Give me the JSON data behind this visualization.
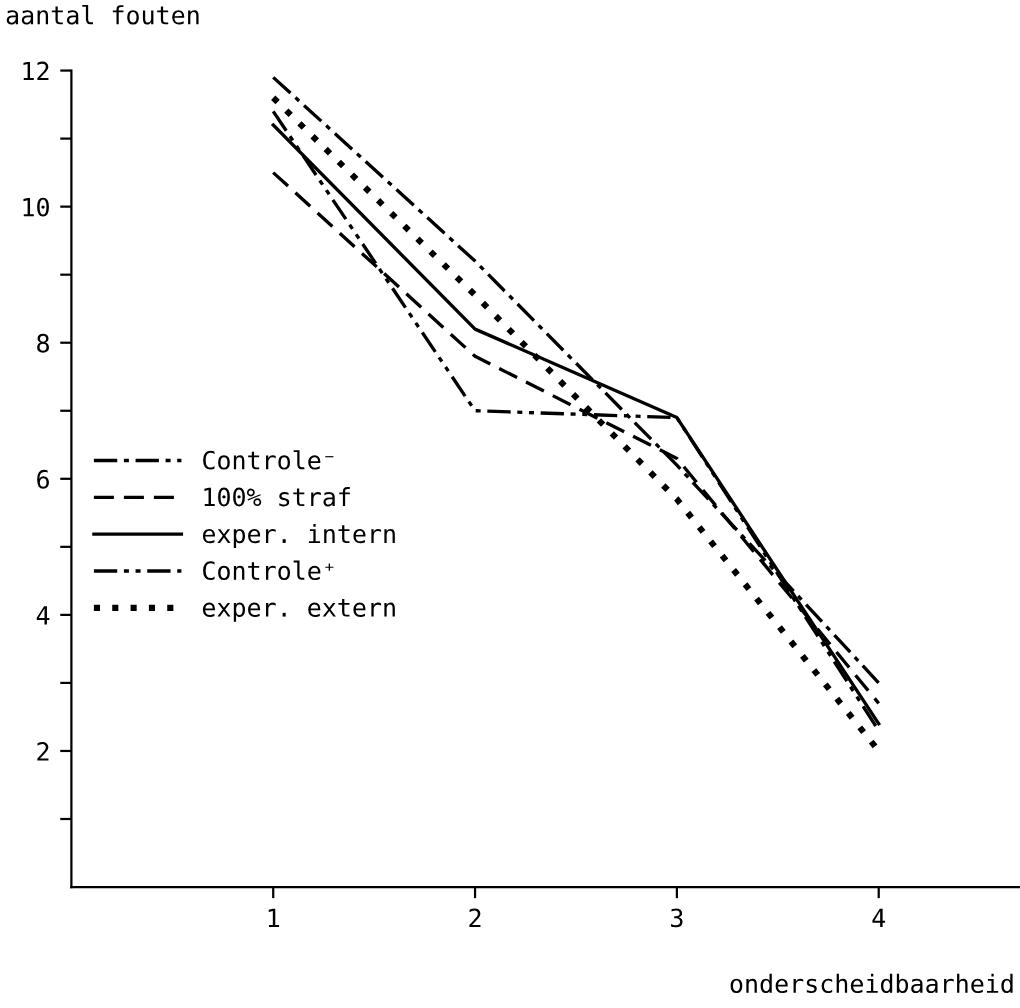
{
  "chart_data": {
    "type": "line",
    "xlabel": "onderscheidbaarheid",
    "ylabel": "aantal fouten",
    "x": [
      1,
      2,
      3,
      4
    ],
    "xlim": [
      0,
      4.7
    ],
    "xticks": [
      1,
      2,
      3,
      4
    ],
    "ylim": [
      0,
      12
    ],
    "yticks": [
      {
        "value": 1,
        "label": null
      },
      2,
      {
        "value": 3,
        "label": null
      },
      4,
      {
        "value": 5,
        "label": null
      },
      6,
      {
        "value": 7,
        "label": null
      },
      8,
      {
        "value": 9,
        "label": null
      },
      10,
      {
        "value": 11,
        "label": null
      },
      12
    ],
    "grid": false,
    "legend": "left",
    "marker": "none",
    "series": [
      {
        "name": "Controle⁻",
        "color": "#000000",
        "line_style": "dashdot",
        "values": [
          11.9,
          9.2,
          6.2,
          3.0
        ]
      },
      {
        "name": "100% straf",
        "color": "#000000",
        "line_style": "dashed",
        "values": [
          10.5,
          7.8,
          6.3,
          2.7
        ]
      },
      {
        "name": "exper. intern",
        "color": "#000000",
        "line_style": "solid",
        "values": [
          11.2,
          8.2,
          6.9,
          2.4
        ]
      },
      {
        "name": "Controle⁺",
        "color": "#000000",
        "line_style": "dashdotdot",
        "values": [
          11.4,
          7.0,
          6.9,
          2.3
        ]
      },
      {
        "name": "exper. extern",
        "color": "#000000",
        "line_style": "dotted",
        "values": [
          11.6,
          8.7,
          5.7,
          2.0
        ]
      }
    ]
  }
}
